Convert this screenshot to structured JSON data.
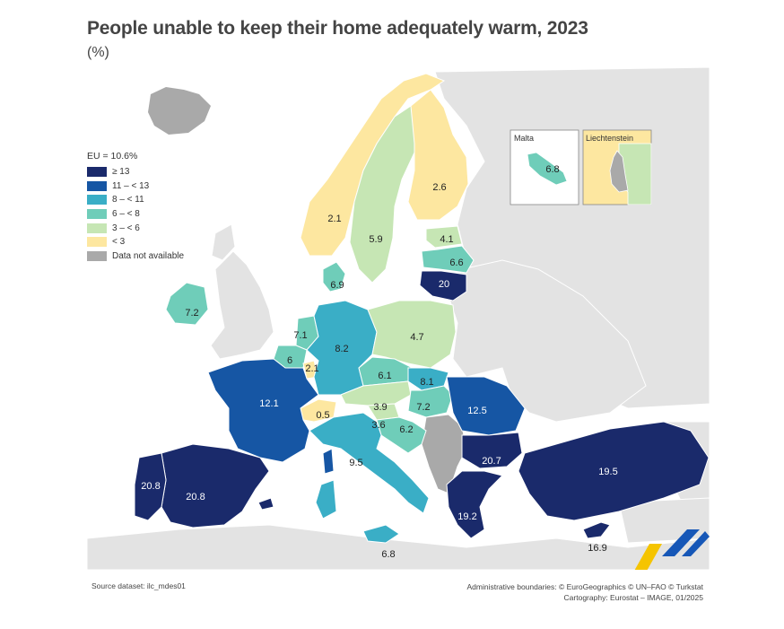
{
  "title": "People unable to keep their home adequately warm, 2023",
  "unit": "(%)",
  "legend": {
    "title": "EU = 10.6%",
    "classes": [
      {
        "label": "≥ 13",
        "color": "#1a2a6b"
      },
      {
        "label": "11 – < 13",
        "color": "#1656a4"
      },
      {
        "label": "8 – < 11",
        "color": "#3aaec6"
      },
      {
        "label": "6 – < 8",
        "color": "#6fcdb9"
      },
      {
        "label": "3 – < 6",
        "color": "#c6e6b4"
      },
      {
        "label": "< 3",
        "color": "#fde7a0"
      },
      {
        "label": "Data not available",
        "color": "#a9a9a9"
      }
    ]
  },
  "values": {
    "norway": "2.1",
    "sweden": "5.9",
    "finland": "2.6",
    "estonia": "4.1",
    "latvia": "6.6",
    "lithuania": "20",
    "denmark": "6.9",
    "ireland": "7.2",
    "netherlands": "7.1",
    "belgium": "6",
    "luxembourg": "2.1",
    "germany": "8.2",
    "poland": "4.7",
    "czechia": "6.1",
    "slovakia": "8.1",
    "hungary": "7.2",
    "austria": "3.9",
    "slovenia": "3.6",
    "croatia": "6.2",
    "switzerland": "0.5",
    "france": "12.1",
    "romania": "12.5",
    "bulgaria": "20.7",
    "greece": "19.2",
    "turkiye": "19.5",
    "cyprus": "16.9",
    "italy": "9.5",
    "malta_main": "6.8",
    "spain": "20.8",
    "portugal": "20.8",
    "malta_inset": "6.8"
  },
  "insets": {
    "malta": "Malta",
    "liechtenstein": "Liechtenstein"
  },
  "source": "Source dataset: ilc_mdes01",
  "credits": [
    "Administrative boundaries: © EuroGeographics © UN–FAO © Turkstat",
    "Cartography: Eurostat – IMAGE, 01/2025"
  ]
}
